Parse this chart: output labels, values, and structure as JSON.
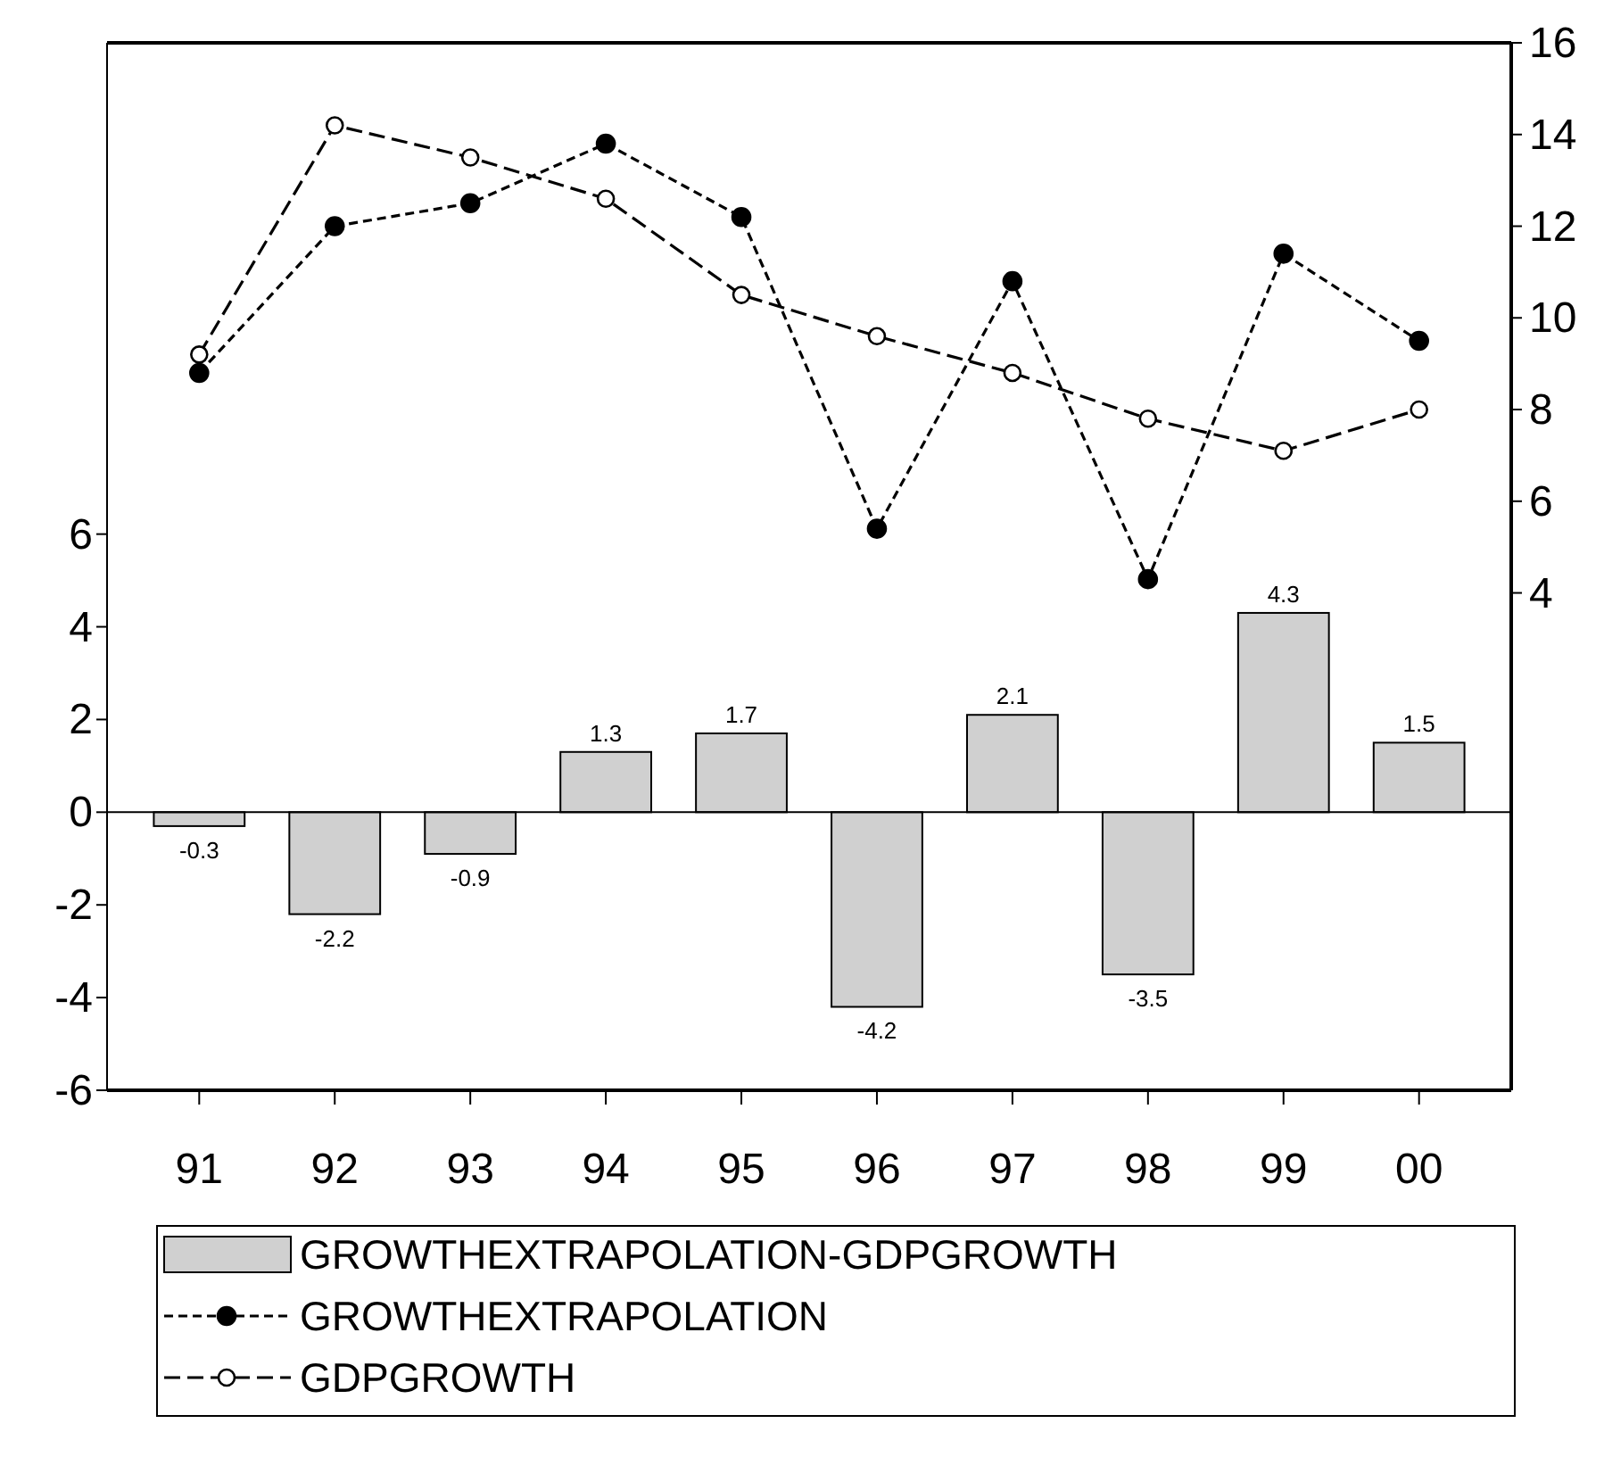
{
  "chart_data": {
    "type": "bar",
    "categories": [
      "91",
      "92",
      "93",
      "94",
      "95",
      "96",
      "97",
      "98",
      "99",
      "00"
    ],
    "series": [
      {
        "name": "GROWTHEXTRAPOLATION-GDPGROWTH",
        "color": "#d0d0d0",
        "values": [
          -0.3,
          -2.2,
          -0.9,
          1.3,
          1.7,
          -4.2,
          2.1,
          -3.5,
          4.3,
          1.5
        ],
        "value_labels": [
          "-0.3",
          "-2.2",
          "-0.9",
          "1.3",
          "1.7",
          "-4.2",
          "2.1",
          "-3.5",
          "4.3",
          "1.5"
        ]
      },
      {
        "name": "GROWTHEXTRAPOLATION",
        "type": "line",
        "axis": "y2",
        "color": "#000000",
        "marker": "circle",
        "line_style": "dashed",
        "values": [
          8.8,
          12.0,
          12.5,
          13.8,
          12.2,
          5.4,
          10.8,
          4.3,
          11.4,
          9.5
        ]
      },
      {
        "name": "GDPGROWTH",
        "type": "line",
        "axis": "y2",
        "color": "#000000",
        "marker": "circle",
        "line_style": "dashed",
        "values": [
          9.2,
          14.2,
          13.5,
          12.6,
          10.5,
          9.6,
          8.8,
          7.8,
          7.1,
          8.0
        ]
      }
    ],
    "ylim": [
      -6,
      16.6
    ],
    "yticks": [
      -6,
      -4,
      -2,
      0,
      2,
      4,
      6
    ],
    "y2lim": [
      -6.85,
      16
    ],
    "y2ticks": [
      4,
      6,
      8,
      10,
      12,
      14,
      16
    ],
    "ref_lines": [
      {
        "axis": "y",
        "value": 0
      }
    ],
    "grid": false,
    "legend": "bottom"
  }
}
